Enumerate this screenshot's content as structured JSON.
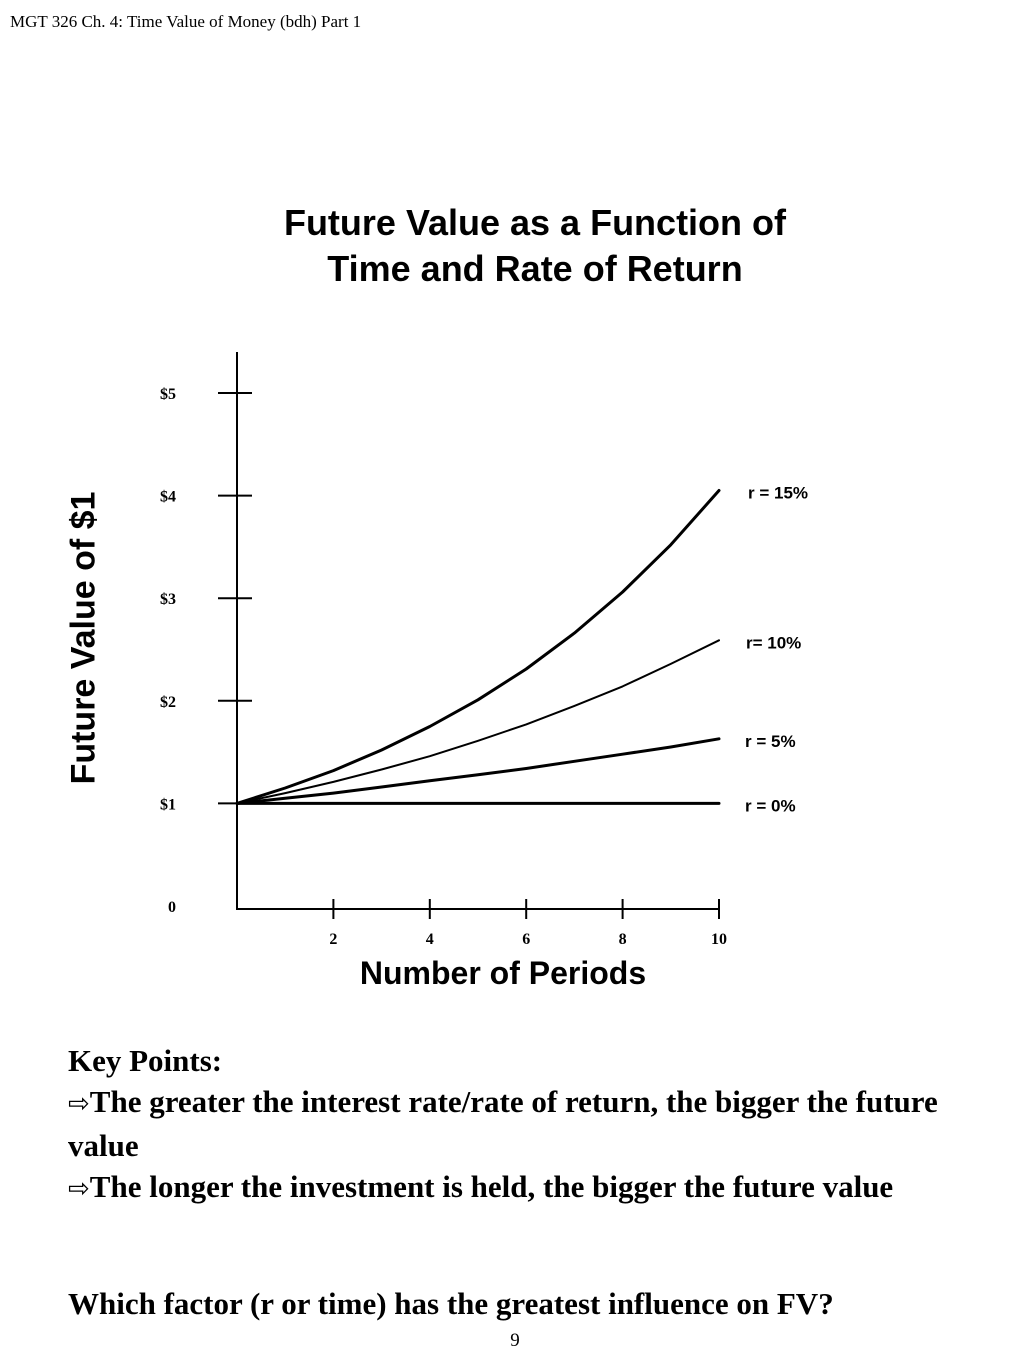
{
  "header": {
    "text": "MGT 326  Ch. 4: Time Value of Money (bdh) Part 1"
  },
  "chart_data": {
    "type": "line",
    "title_lines": [
      "Future Value as a Function of",
      "Time and Rate of Return"
    ],
    "xlabel": "Number of Periods",
    "ylabel": "Future Value of $1",
    "xlim": [
      0,
      10
    ],
    "ylim": [
      0,
      5
    ],
    "x_ticks": [
      2,
      4,
      6,
      8,
      10
    ],
    "x_tick_labels": [
      "2",
      "4",
      "6",
      "8",
      "10"
    ],
    "y_ticks": [
      0,
      1,
      2,
      3,
      4,
      5
    ],
    "y_tick_labels": [
      "0",
      "$1",
      "$2",
      "$3",
      "$4",
      "$5"
    ],
    "grid": false,
    "series": [
      {
        "name": "r = 0%",
        "rate": 0.0,
        "label": "r = 0%",
        "stroke": "heavy",
        "x": [
          0,
          1,
          2,
          3,
          4,
          5,
          6,
          7,
          8,
          9,
          10
        ],
        "values": [
          1,
          1,
          1,
          1,
          1,
          1,
          1,
          1,
          1,
          1,
          1
        ]
      },
      {
        "name": "r = 5%",
        "rate": 0.05,
        "label": "r = 5%",
        "stroke": "heavy",
        "x": [
          0,
          1,
          2,
          3,
          4,
          5,
          6,
          7,
          8,
          9,
          10
        ],
        "values": [
          1,
          1.05,
          1.1,
          1.16,
          1.22,
          1.28,
          1.34,
          1.41,
          1.48,
          1.55,
          1.63
        ]
      },
      {
        "name": "r = 10%",
        "rate": 0.1,
        "label": "r= 10%",
        "stroke": "thin",
        "x": [
          0,
          1,
          2,
          3,
          4,
          5,
          6,
          7,
          8,
          9,
          10
        ],
        "values": [
          1,
          1.1,
          1.21,
          1.33,
          1.46,
          1.61,
          1.77,
          1.95,
          2.14,
          2.36,
          2.59
        ]
      },
      {
        "name": "r = 15%",
        "rate": 0.15,
        "label": "r = 15%",
        "stroke": "heavy",
        "x": [
          0,
          1,
          2,
          3,
          4,
          5,
          6,
          7,
          8,
          9,
          10
        ],
        "values": [
          1,
          1.15,
          1.32,
          1.52,
          1.75,
          2.01,
          2.31,
          2.66,
          3.06,
          3.52,
          4.05
        ]
      }
    ]
  },
  "key_points": {
    "heading": "Key Points:",
    "arrow_glyph": "⇨",
    "items": [
      "The greater the interest rate/rate of return, the bigger the future value",
      "The longer the investment is held, the bigger the future value"
    ]
  },
  "question": "Which factor (r or time) has the greatest influence on FV?",
  "page_number": "9"
}
